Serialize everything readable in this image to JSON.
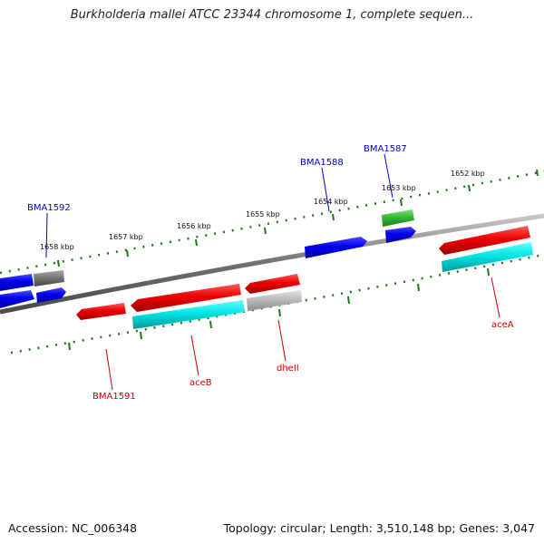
{
  "title": "Burkholderia mallei ATCC 23344 chromosome 1, complete sequen...",
  "accession": "Accession: NC_006348",
  "topology": "Topology: circular; Length: 3,510,148 bp; Genes: 3,047",
  "scale_labels": [
    "1652 kbp",
    "1653 kbp",
    "1654 kbp",
    "1655 kbp",
    "1656 kbp",
    "1657 kbp",
    "1658 kbp"
  ],
  "genes": [
    {
      "name": "BMA1587",
      "strand": "+",
      "color": "#0000cc"
    },
    {
      "name": "BMA1588",
      "strand": "+",
      "color": "#0000cc"
    },
    {
      "name": "BMA1592",
      "strand": "+",
      "color": "#0000cc"
    },
    {
      "name": "BMA1591",
      "strand": "-",
      "color": "#cc0000"
    },
    {
      "name": "aceB",
      "strand": "-",
      "color": "#cc0000"
    },
    {
      "name": "dheII",
      "strand": "-",
      "color": "#cc0000"
    },
    {
      "name": "aceA",
      "strand": "-",
      "color": "#cc0000"
    }
  ],
  "colors": {
    "plus_strand": "#0000ee",
    "minus_strand": "#ee0000",
    "cds": "#00e5e5",
    "rna": "#33bb33",
    "other": "#777777",
    "pseudo": "#bbbbbb",
    "scale": "#1a7a1a",
    "backbone": "#777777"
  }
}
